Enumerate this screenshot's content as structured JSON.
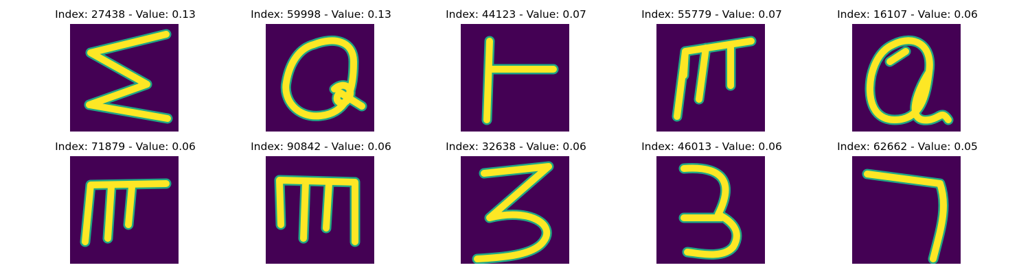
{
  "colors": {
    "background": "#440154",
    "stroke": "#fde725",
    "edge": "#21a685"
  },
  "panels": [
    {
      "title": "Index: 27438 - Value: 0.13"
    },
    {
      "title": "Index: 59998 - Value: 0.13"
    },
    {
      "title": "Index: 44123 - Value: 0.07"
    },
    {
      "title": "Index: 55779 - Value: 0.07"
    },
    {
      "title": "Index: 16107 - Value: 0.06"
    },
    {
      "title": "Index: 71879 - Value: 0.06"
    },
    {
      "title": "Index: 90842 - Value: 0.06"
    },
    {
      "title": "Index: 32638 - Value: 0.06"
    },
    {
      "title": "Index: 46013 - Value: 0.06"
    },
    {
      "title": "Index: 62662 - Value: 0.05"
    }
  ]
}
